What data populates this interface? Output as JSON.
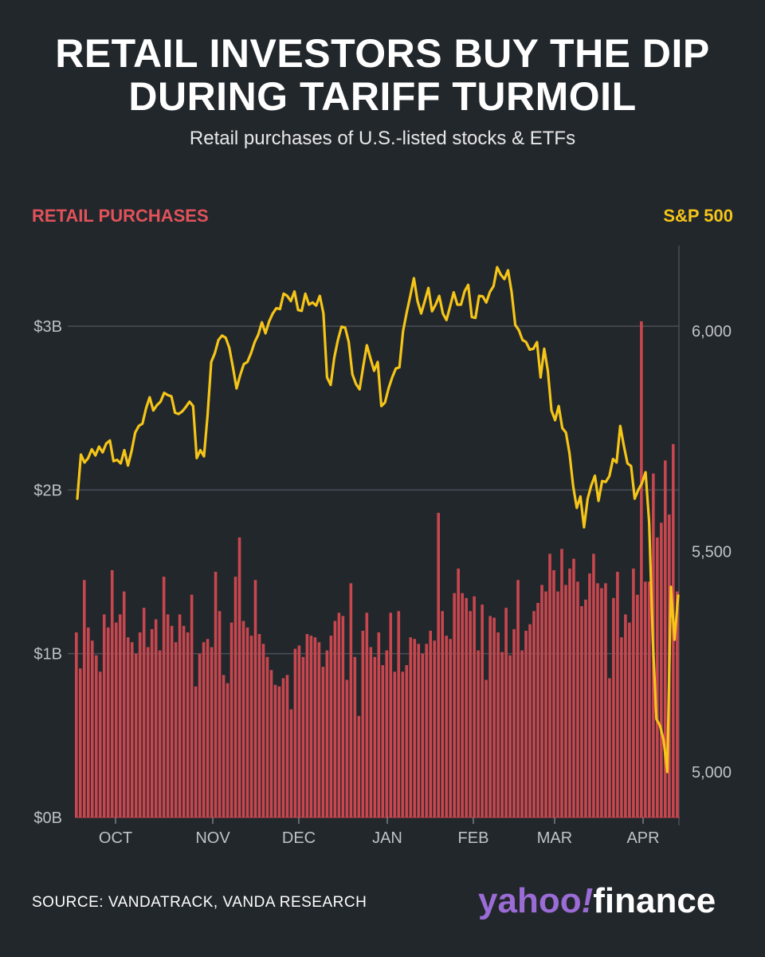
{
  "title_line1": "RETAIL INVESTORS BUY THE DIP",
  "title_line2": "DURING TARIFF TURMOIL",
  "subtitle": "Retail purchases of U.S.-listed stocks & ETFs",
  "source": "SOURCE: VANDATRACK, VANDA RESEARCH",
  "logo": {
    "part1": "yahoo",
    "mark": "!",
    "part2": "finance"
  },
  "colors": {
    "background": "#22272c",
    "bars": "#c8474e",
    "sp500_line": "#f5c518",
    "left_axis_label": "#e2525a",
    "right_axis_label": "#f5c518",
    "grid": "#4a4f55",
    "logo_purple": "#9b6bd6"
  },
  "chart_data": {
    "type": "bar+line",
    "left_axis_label": "RETAIL PURCHASES",
    "right_axis_label": "S&P 500",
    "x_ticks": [
      "OCT",
      "NOV",
      "DEC",
      "JAN",
      "FEB",
      "MAR",
      "APR"
    ],
    "left_axis": {
      "ticks": [
        "$0B",
        "$1B",
        "$2B",
        "$3B"
      ],
      "ylim": [
        0,
        3.5
      ],
      "unit": "$B"
    },
    "right_axis": {
      "ticks": [
        "5,000",
        "5,500",
        "6,000"
      ],
      "ylim": [
        4900,
        6200
      ]
    },
    "grid": true,
    "series": [
      {
        "kind": "bar",
        "frequency": "daily (trading days)",
        "range": "late Sep – mid Apr",
        "values": [
          1.13,
          0.91,
          1.45,
          1.16,
          1.08,
          0.99,
          0.89,
          1.24,
          1.16,
          1.51,
          1.19,
          1.24,
          1.38,
          1.1,
          1.07,
          1.0,
          1.13,
          1.28,
          1.04,
          1.15,
          1.21,
          1.02,
          1.47,
          1.24,
          1.17,
          1.07,
          1.24,
          1.17,
          1.13,
          1.36,
          0.8,
          1.0,
          1.07,
          1.09,
          1.04,
          1.5,
          1.26,
          0.87,
          0.82,
          1.19,
          1.47,
          1.71,
          1.2,
          1.16,
          1.11,
          1.45,
          1.12,
          1.06,
          0.98,
          0.9,
          0.81,
          0.8,
          0.85,
          0.87,
          0.66,
          1.03,
          1.05,
          0.98,
          1.12,
          1.11,
          1.1,
          1.07,
          0.92,
          1.02,
          1.11,
          1.2,
          1.25,
          1.23,
          0.84,
          1.43,
          0.98,
          0.62,
          1.14,
          1.25,
          1.04,
          0.98,
          1.13,
          0.93,
          1.02,
          1.25,
          0.89,
          1.26,
          0.89,
          0.93,
          1.1,
          1.09,
          1.06,
          1.0,
          1.06,
          1.14,
          1.08,
          1.86,
          1.26,
          1.11,
          1.09,
          1.37,
          1.52,
          1.37,
          1.34,
          1.26,
          1.35,
          1.02,
          1.3,
          0.84,
          1.23,
          1.22,
          1.13,
          1.01,
          1.28,
          0.99,
          1.15,
          1.45,
          1.02,
          1.14,
          1.18,
          1.26,
          1.31,
          1.42,
          1.38,
          1.61,
          1.51,
          1.38,
          1.64,
          1.42,
          1.52,
          1.58,
          1.44,
          1.29,
          1.33,
          1.49,
          1.61,
          1.43,
          1.4,
          1.43,
          0.85,
          1.34,
          1.5,
          1.1,
          1.24,
          1.19,
          1.52,
          1.36,
          3.03,
          1.44,
          1.44,
          2.1,
          1.71,
          1.8,
          2.18,
          1.85,
          2.28,
          1.38
        ]
      },
      {
        "kind": "line",
        "name": "S&P 500",
        "values": [
          5620,
          5720,
          5702,
          5712,
          5732,
          5718,
          5738,
          5725,
          5745,
          5752,
          5705,
          5708,
          5700,
          5730,
          5695,
          5728,
          5770,
          5785,
          5790,
          5825,
          5850,
          5820,
          5832,
          5840,
          5860,
          5855,
          5852,
          5815,
          5812,
          5818,
          5828,
          5840,
          5830,
          5712,
          5730,
          5716,
          5810,
          5930,
          5950,
          5980,
          5990,
          5985,
          5962,
          5918,
          5870,
          5900,
          5925,
          5930,
          5950,
          5975,
          5992,
          6020,
          5995,
          6022,
          6040,
          6052,
          6050,
          6085,
          6080,
          6068,
          6090,
          6048,
          6046,
          6085,
          6060,
          6065,
          6058,
          6080,
          6040,
          5895,
          5878,
          5940,
          5980,
          6010,
          6008,
          5975,
          5902,
          5880,
          5868,
          5920,
          5968,
          5938,
          5910,
          5930,
          5830,
          5838,
          5870,
          5895,
          5915,
          5918,
          6000,
          6042,
          6080,
          6120,
          6068,
          6040,
          6068,
          6098,
          6045,
          6060,
          6080,
          6040,
          6025,
          6056,
          6088,
          6060,
          6060,
          6090,
          6105,
          6032,
          6030,
          6080,
          6079,
          6065,
          6089,
          6102,
          6145,
          6128,
          6118,
          6138,
          6088,
          6014,
          6002,
          5980,
          5975,
          5958,
          5960,
          5975,
          5895,
          5960,
          5910,
          5820,
          5798,
          5830,
          5780,
          5770,
          5722,
          5648,
          5599,
          5625,
          5555,
          5620,
          5650,
          5672,
          5615,
          5660,
          5658,
          5671,
          5710,
          5702,
          5785,
          5740,
          5700,
          5694,
          5620,
          5640,
          5655,
          5680,
          5565,
          5300,
          5120,
          5105,
          5072,
          5000,
          5420,
          5300,
          5400
        ]
      }
    ]
  }
}
